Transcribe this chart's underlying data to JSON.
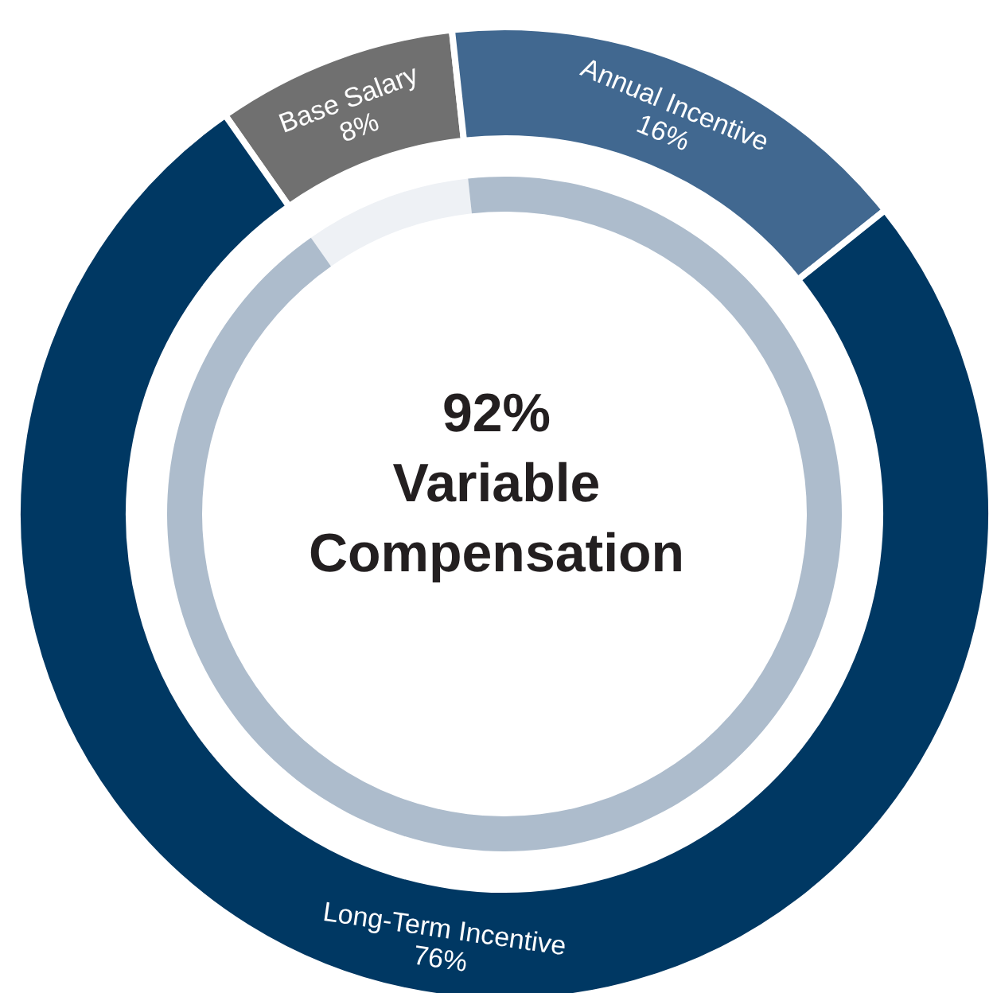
{
  "chart_data": [
    {
      "type": "donut",
      "categories": [
        "Base Salary",
        "Annual Incentive",
        "Long-Term Incentive"
      ],
      "values": [
        8,
        16,
        76
      ],
      "colors": [
        "#707070",
        "#416890",
        "#003863"
      ],
      "value_labels": [
        "8%",
        "16%",
        "76%"
      ]
    },
    {
      "type": "donut",
      "title": "92% Variable Compensation",
      "categories": [
        null,
        null
      ],
      "values": [
        8,
        92
      ],
      "colors": [
        "#eef1f5",
        "#adbccc"
      ]
    }
  ]
}
